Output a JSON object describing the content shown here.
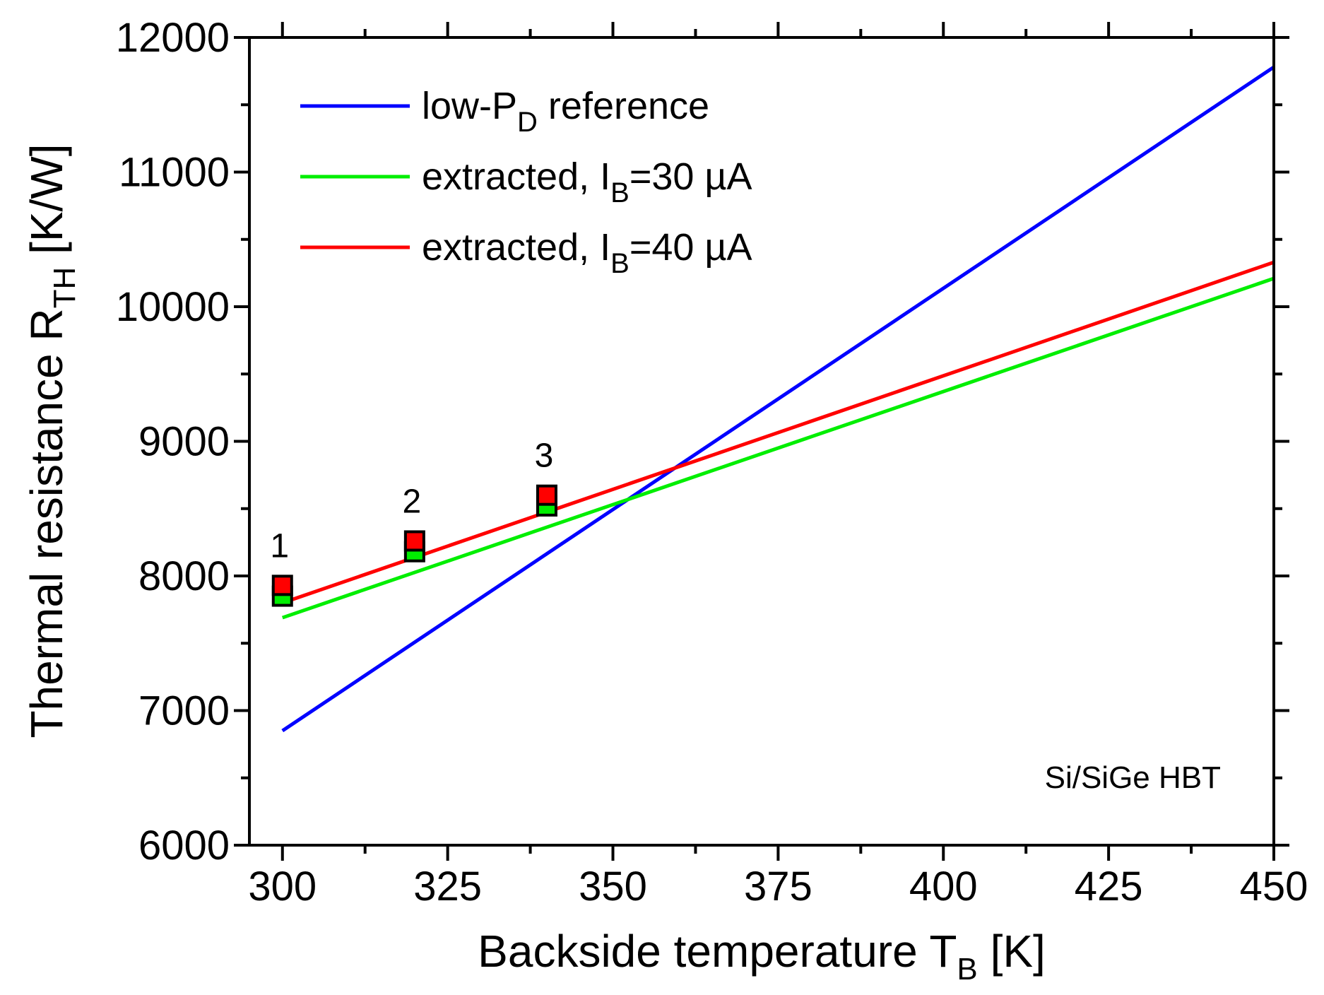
{
  "chart_data": {
    "type": "line",
    "xlabel": {
      "main": "Backside temperature T",
      "sub": "B",
      "unit": " [K]"
    },
    "ylabel": {
      "main": "Thermal resistance R",
      "sub": "TH",
      "unit": " [K/W]"
    },
    "xlim": [
      295,
      450
    ],
    "ylim": [
      6000,
      12000
    ],
    "xticks": [
      300,
      325,
      350,
      375,
      400,
      425,
      450
    ],
    "yticks": [
      6000,
      7000,
      8000,
      9000,
      10000,
      11000,
      12000
    ],
    "series": [
      {
        "name": "low-P_D reference",
        "label_main": "low-P",
        "label_sub": "D",
        "label_rest": " reference",
        "color": "#0000ff",
        "x": [
          300,
          450
        ],
        "y": [
          6850,
          11780
        ]
      },
      {
        "name": "extracted, I_B=30 µA",
        "label_main": "extracted, I",
        "label_sub": "B",
        "label_rest": "=30 µA",
        "color": "#00ee00",
        "x": [
          300,
          450
        ],
        "y": [
          7690,
          10210
        ]
      },
      {
        "name": "extracted, I_B=40 µA",
        "label_main": "extracted, I",
        "label_sub": "B",
        "label_rest": "=40 µA",
        "color": "#ff0000",
        "x": [
          300,
          450
        ],
        "y": [
          7800,
          10330
        ]
      }
    ],
    "markers": [
      {
        "label": "1",
        "x": 300,
        "y_green": 7850,
        "y_red": 7930
      },
      {
        "label": "2",
        "x": 320,
        "y_green": 8180,
        "y_red": 8260
      },
      {
        "label": "3",
        "x": 340,
        "y_green": 8520,
        "y_red": 8600
      }
    ],
    "annotation": "Si/SiGe HBT",
    "legend_position": "top-left"
  }
}
